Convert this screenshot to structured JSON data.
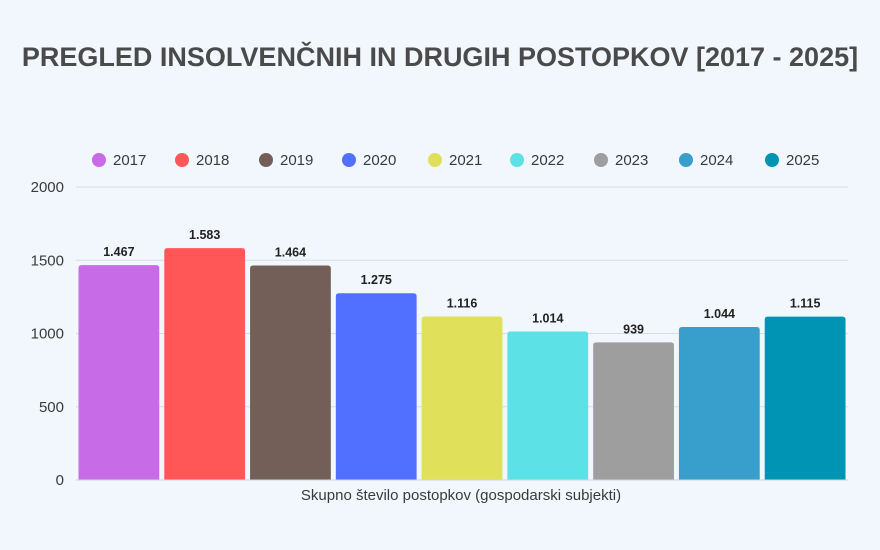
{
  "chart_data": {
    "type": "bar",
    "title": "PREGLED INSOLVENČNIH IN DRUGIH POSTOPKOV [2017 - 2025]",
    "xlabel": "Skupno število postopkov (gospodarski subjekti)",
    "ylabel": "",
    "ylim": [
      0,
      2000
    ],
    "yticks": [
      0,
      500,
      1000,
      1500,
      2000
    ],
    "ytick_labels": [
      "0",
      "500",
      "1000",
      "1500",
      "2000"
    ],
    "grid": true,
    "legend_position": "top",
    "series": [
      {
        "name": "2017",
        "values": [
          1467
        ],
        "label": "1.467",
        "color": "#c86be6"
      },
      {
        "name": "2018",
        "values": [
          1583
        ],
        "label": "1.583",
        "color": "#ff5757"
      },
      {
        "name": "2019",
        "values": [
          1464
        ],
        "label": "1.464",
        "color": "#735f58"
      },
      {
        "name": "2020",
        "values": [
          1275
        ],
        "label": "1.275",
        "color": "#5170ff"
      },
      {
        "name": "2021",
        "values": [
          1116
        ],
        "label": "1.116",
        "color": "#e0e05a"
      },
      {
        "name": "2022",
        "values": [
          1014
        ],
        "label": "1.014",
        "color": "#5ce1e6"
      },
      {
        "name": "2023",
        "values": [
          939
        ],
        "label": "939",
        "color": "#9e9e9e"
      },
      {
        "name": "2024",
        "values": [
          1044
        ],
        "label": "1.044",
        "color": "#389ecc"
      },
      {
        "name": "2025",
        "values": [
          1115
        ],
        "label": "1.115",
        "color": "#0094b4"
      }
    ]
  }
}
